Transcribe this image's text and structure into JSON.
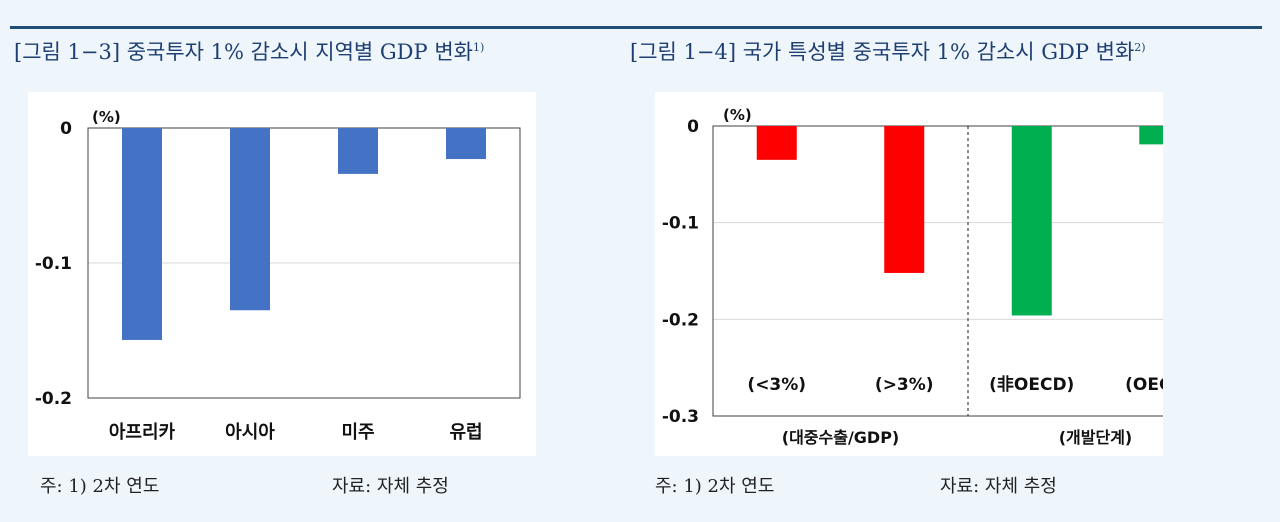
{
  "figures": [
    {
      "title": "[그림 1−3] 중국투자 1% 감소시 지역별 GDP 변화",
      "title_sup": "1)",
      "note": "주: 1) 2차 연도",
      "source": "자료: 자체 추정"
    },
    {
      "title": "[그림 1−4] 국가 특성별 중국투자 1% 감소시 GDP 변화",
      "title_sup": "2)",
      "note": "주: 1) 2차 연도",
      "source": "자료: 자체 추정"
    }
  ],
  "chart_data": [
    {
      "type": "bar",
      "unit_label": "(%)",
      "categories": [
        "아프리카",
        "아시아",
        "미주",
        "유럽"
      ],
      "values": [
        -0.157,
        -0.135,
        -0.034,
        -0.023
      ],
      "ylim": [
        -0.2,
        0
      ],
      "yticks": [
        0,
        -0.1,
        -0.2
      ],
      "ytick_labels": [
        "0",
        "-0.1",
        "-0.2"
      ],
      "grid": true,
      "colors": [
        "#4472c4",
        "#4472c4",
        "#4472c4",
        "#4472c4"
      ]
    },
    {
      "type": "bar",
      "unit_label": "(%)",
      "categories": [
        "(<3%)",
        "(>3%)",
        "(非OECD)",
        "(OECD)"
      ],
      "values": [
        -0.035,
        -0.152,
        -0.196,
        -0.019
      ],
      "ylim": [
        -0.3,
        0
      ],
      "yticks": [
        0,
        -0.1,
        -0.2,
        -0.3
      ],
      "ytick_labels": [
        "0",
        "-0.1",
        "-0.2",
        "-0.3"
      ],
      "grid": true,
      "colors": [
        "#ff0000",
        "#ff0000",
        "#00b050",
        "#00b050"
      ],
      "group_labels": [
        "(대중수출/GDP)",
        "(개발단계)"
      ],
      "group_divider": true
    }
  ]
}
